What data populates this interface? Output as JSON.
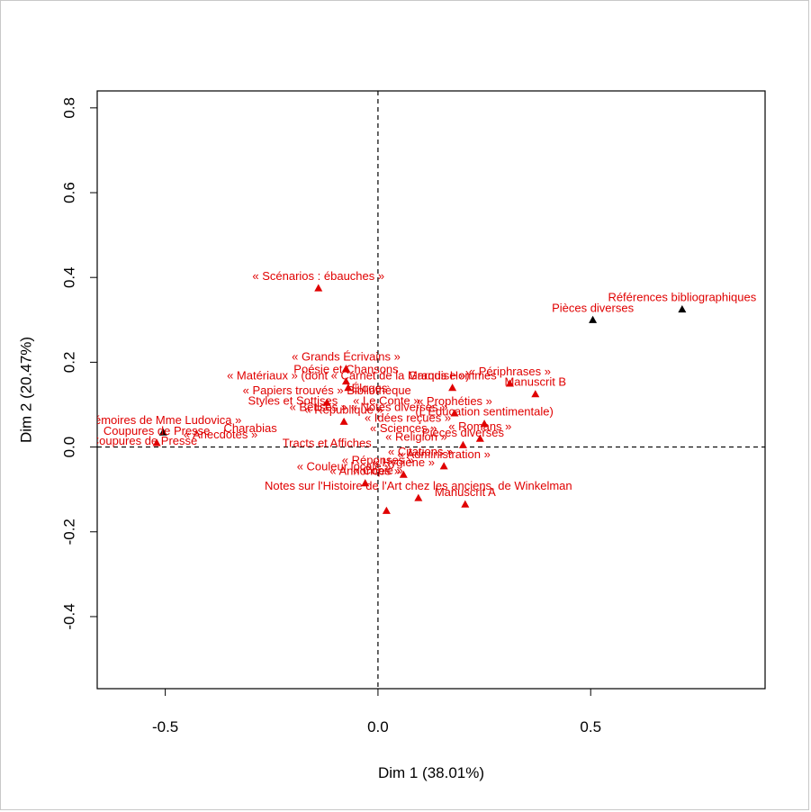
{
  "chart_data": {
    "type": "scatter",
    "xlabel": "Dim 1 (38.01%)",
    "ylabel": "Dim 2 (20.47%)",
    "xlim": [
      -0.66,
      0.91
    ],
    "ylim": [
      -0.57,
      0.84
    ],
    "xticks": [
      -0.5,
      0.0,
      0.5
    ],
    "xtick_labels": [
      "-0.5",
      "0.0",
      "0.5"
    ],
    "yticks": [
      -0.4,
      -0.2,
      0.0,
      0.2,
      0.4,
      0.6,
      0.8
    ],
    "ytick_labels": [
      "-0.4",
      "-0.2",
      "0.0",
      "0.2",
      "0.4",
      "0.6",
      "0.8"
    ],
    "reference_lines": {
      "x": 0,
      "y": 0,
      "style": "dashed"
    },
    "grid": false,
    "legend": "none",
    "colors": {
      "modalities": "#e00000",
      "supplementary": "#000000"
    },
    "points": [
      {
        "x": -0.14,
        "y": 0.375,
        "label": "« Scénarios : ébauches »",
        "color": "red"
      },
      {
        "x": -0.075,
        "y": 0.185,
        "label": "« Grands Écrivains »",
        "color": "red"
      },
      {
        "x": -0.075,
        "y": 0.155,
        "label": "Poésie et Chansons",
        "color": "red"
      },
      {
        "x": -0.07,
        "y": 0.14,
        "label": "« Matériaux » (dont « Carnet de la Marquise »)",
        "color": "red"
      },
      {
        "x": -0.12,
        "y": 0.105,
        "label": "« Papiers trouvés » Bibliothèque",
        "color": "red"
      },
      {
        "x": -0.505,
        "y": 0.035,
        "label": "Mémoires de Mme Ludovica »",
        "color": "black"
      },
      {
        "x": -0.52,
        "y": 0.01,
        "label": "Coupures de Presse",
        "color": "red"
      },
      {
        "x": -0.08,
        "y": 0.06,
        "label": "« République »",
        "color": "red"
      },
      {
        "x": 0.175,
        "y": 0.14,
        "label": "Grands Hommes",
        "color": "red"
      },
      {
        "x": 0.31,
        "y": 0.15,
        "label": "« Périphrases »",
        "color": "red"
      },
      {
        "x": 0.37,
        "y": 0.125,
        "label": "Manuscrit B",
        "color": "red"
      },
      {
        "x": 0.18,
        "y": 0.08,
        "label": "« Prophéties »",
        "color": "red"
      },
      {
        "x": 0.25,
        "y": 0.055,
        "label": "(L'Éducation sentimentale)",
        "color": "red"
      },
      {
        "x": 0.24,
        "y": 0.02,
        "label": "« Romans »",
        "color": "red"
      },
      {
        "x": 0.2,
        "y": 0.005,
        "label": "Pièces diverses",
        "color": "red"
      },
      {
        "x": 0.155,
        "y": -0.045,
        "label": "« Administration »",
        "color": "red"
      },
      {
        "x": 0.06,
        "y": -0.065,
        "label": "« Hygiène »",
        "color": "red"
      },
      {
        "x": -0.03,
        "y": -0.085,
        "label": "« Annonces »",
        "color": "red"
      },
      {
        "x": 0.205,
        "y": -0.135,
        "label": "Manuscrit A",
        "color": "red"
      },
      {
        "x": 0.095,
        "y": -0.12,
        "label": "Notes sur l'Histoire de l'Art chez les anciens, de Winkelman",
        "color": "red"
      },
      {
        "x": 0.02,
        "y": -0.15,
        "label": "",
        "color": "red"
      },
      {
        "x": 0.505,
        "y": 0.3,
        "label": "Pièces diverses",
        "color": "black"
      },
      {
        "x": 0.715,
        "y": 0.325,
        "label": "Références bibliographiques",
        "color": "black"
      }
    ],
    "cluster_labels": [
      {
        "x": -0.55,
        "y": 0.005,
        "label": "Coupures de Presse"
      },
      {
        "x": -0.37,
        "y": 0.02,
        "label": "« Anecdotes »"
      },
      {
        "x": -0.3,
        "y": 0.035,
        "label": "Charabias"
      },
      {
        "x": -0.2,
        "y": 0.1,
        "label": "Styles et Sottises"
      },
      {
        "x": -0.14,
        "y": 0.085,
        "label": "« Bêtises »"
      },
      {
        "x": -0.12,
        "y": 0.0,
        "label": "Tracts et Affiches"
      },
      {
        "x": -0.02,
        "y": 0.13,
        "label": "Éloges"
      },
      {
        "x": 0.02,
        "y": 0.1,
        "label": "« Le Conte »"
      },
      {
        "x": 0.05,
        "y": 0.085,
        "label": "« Notes diverses »"
      },
      {
        "x": 0.07,
        "y": 0.06,
        "label": "« Idées reçues »"
      },
      {
        "x": 0.06,
        "y": 0.035,
        "label": "« Sciences »"
      },
      {
        "x": 0.09,
        "y": 0.015,
        "label": "« Religion »"
      },
      {
        "x": 0.1,
        "y": -0.02,
        "label": "« Citations »"
      },
      {
        "x": 0.0,
        "y": -0.04,
        "label": "« Réponses »"
      },
      {
        "x": -0.08,
        "y": -0.055,
        "label": "« Couleur locale »"
      },
      {
        "x": 0.0,
        "y": -0.065,
        "label": "« Copie »"
      }
    ]
  }
}
